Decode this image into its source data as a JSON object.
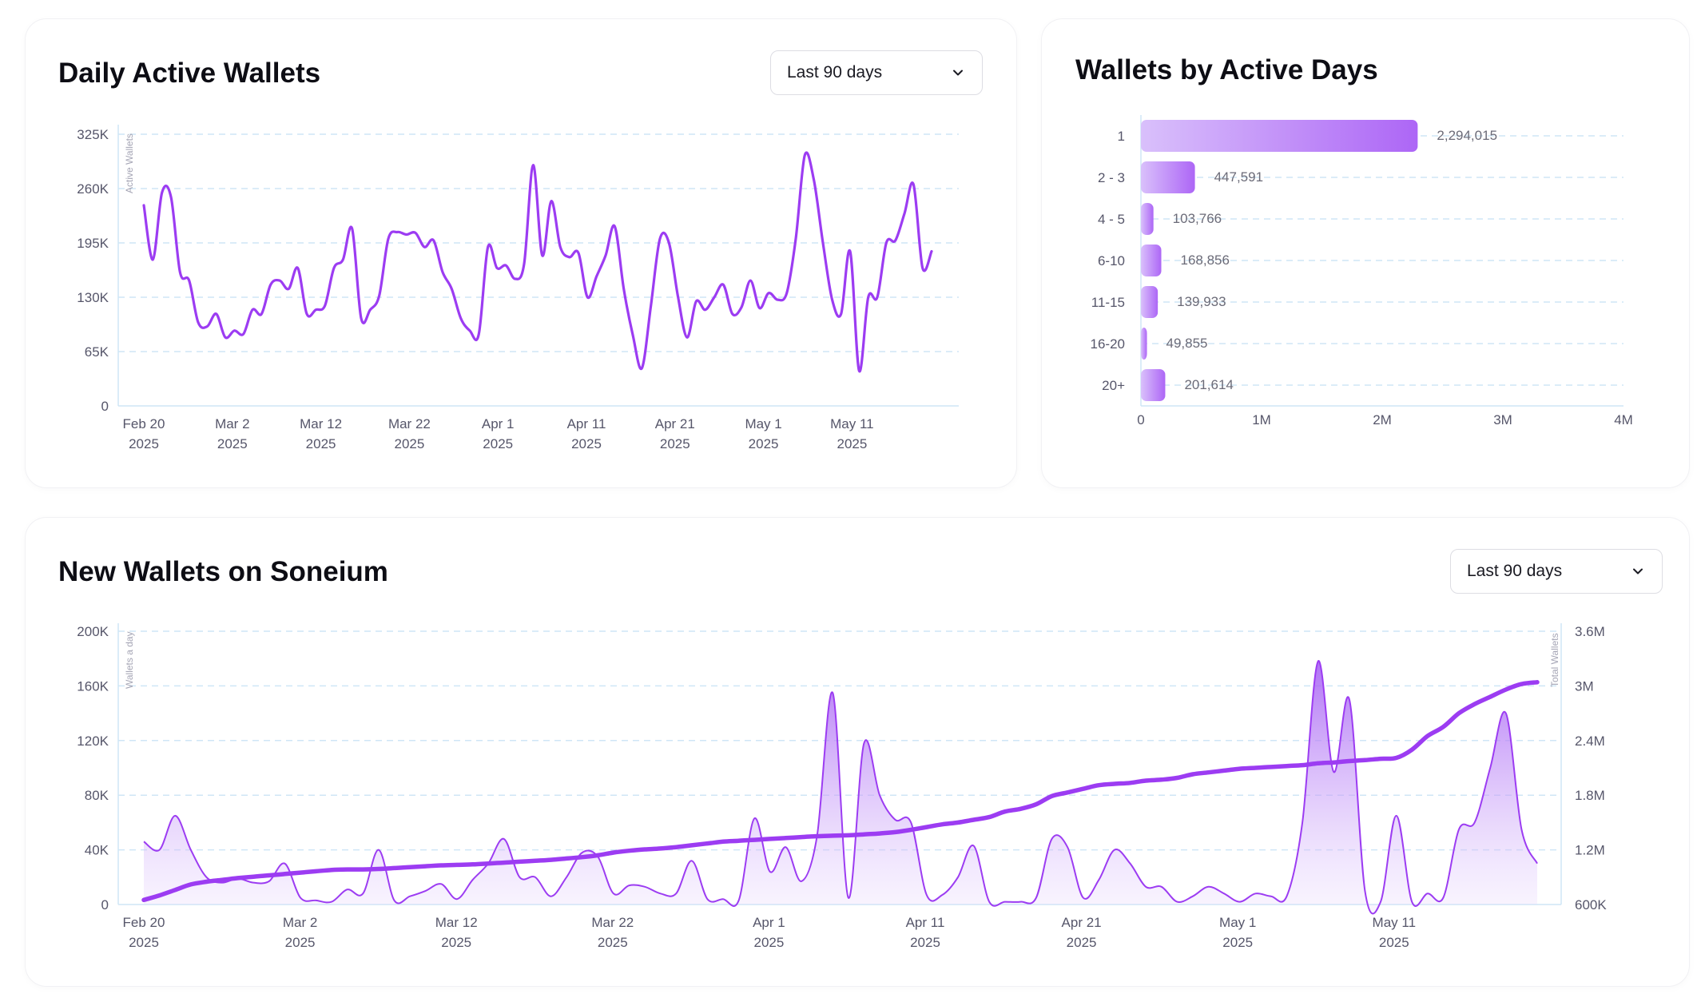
{
  "colors": {
    "accent": "#9c3cf2",
    "accent_light": "#d6b4fb",
    "grid": "#cfe6f6",
    "axis_text": "#56566a",
    "value_text": "#6b6b78",
    "axis_title": "#a5a5b5"
  },
  "daily_active": {
    "title": "Daily Active Wallets",
    "dropdown": {
      "label": "Last 90 days",
      "icon": "chevron-down-icon"
    }
  },
  "by_active_days": {
    "title": "Wallets by Active Days"
  },
  "new_wallets": {
    "title": "New Wallets on Soneium",
    "dropdown": {
      "label": "Last 90 days",
      "icon": "chevron-down-icon"
    }
  },
  "chart_data": [
    {
      "type": "line",
      "id": "daily-active-wallets",
      "title": "Daily Active Wallets",
      "ylabel": "Active Wallets",
      "ylim": [
        0,
        325000
      ],
      "yticks": [
        0,
        65000,
        130000,
        195000,
        260000,
        325000
      ],
      "ytick_labels": [
        "0",
        "65K",
        "130K",
        "195K",
        "260K",
        "325K"
      ],
      "xtick_labels": [
        [
          "Feb 20",
          "2025"
        ],
        [
          "Mar 2",
          "2025"
        ],
        [
          "Mar 12",
          "2025"
        ],
        [
          "Mar 22",
          "2025"
        ],
        [
          "Apr 1",
          "2025"
        ],
        [
          "Apr 11",
          "2025"
        ],
        [
          "Apr 21",
          "2025"
        ],
        [
          "May 1",
          "2025"
        ],
        [
          "May 11",
          "2025"
        ]
      ],
      "grid": true,
      "series": [
        {
          "values": [
            240000,
            175000,
            255000,
            250000,
            160000,
            150000,
            100000,
            95000,
            110000,
            82000,
            90000,
            86000,
            115000,
            110000,
            145000,
            150000,
            140000,
            165000,
            110000,
            115000,
            120000,
            165000,
            175000,
            212000,
            105000,
            115000,
            132000,
            200000,
            208000,
            205000,
            207000,
            190000,
            198000,
            160000,
            140000,
            105000,
            90000,
            86000,
            190000,
            165000,
            168000,
            152000,
            170000,
            288000,
            180000,
            245000,
            190000,
            178000,
            183000,
            130000,
            155000,
            180000,
            215000,
            140000,
            85000,
            45000,
            120000,
            200000,
            195000,
            130000,
            82000,
            125000,
            115000,
            130000,
            145000,
            110000,
            118000,
            150000,
            117000,
            135000,
            127000,
            135000,
            200000,
            300000,
            270000,
            195000,
            128000,
            110000,
            185000,
            42000,
            130000,
            130000,
            195000,
            198000,
            230000,
            265000,
            165000,
            185000
          ]
        }
      ]
    },
    {
      "type": "bar",
      "id": "wallets-by-active-days",
      "orientation": "horizontal",
      "title": "Wallets by Active Days",
      "categories": [
        "1",
        "2 - 3",
        "4 - 5",
        "6-10",
        "11-15",
        "16-20",
        "20+"
      ],
      "values": [
        2294015,
        447591,
        103766,
        168856,
        139933,
        49855,
        201614
      ],
      "value_labels": [
        "2,294,015",
        "447,591",
        "103,766",
        "168,856",
        "139,933",
        "49,855",
        "201,614"
      ],
      "xlim": [
        0,
        4000000
      ],
      "xticks": [
        0,
        1000000,
        2000000,
        3000000,
        4000000
      ],
      "xtick_labels": [
        "0",
        "1M",
        "2M",
        "3M",
        "4M"
      ],
      "grid": true
    },
    {
      "type": "area",
      "id": "new-wallets-on-soneium",
      "title": "New Wallets on Soneium",
      "ylabel": "Wallets a day",
      "ylabel_right": "Total Wallets",
      "ylim": [
        0,
        200000
      ],
      "yticks": [
        0,
        40000,
        80000,
        120000,
        160000,
        200000
      ],
      "ytick_labels": [
        "0",
        "40K",
        "80K",
        "120K",
        "160K",
        "200K"
      ],
      "ylim_right": [
        600000,
        3600000
      ],
      "yticks_right": [
        600000,
        1200000,
        1800000,
        2400000,
        3000000,
        3600000
      ],
      "ytick_labels_right": [
        "600K",
        "1.2M",
        "1.8M",
        "2.4M",
        "3M",
        "3.6M"
      ],
      "xtick_labels": [
        [
          "Feb 20",
          "2025"
        ],
        [
          "Mar 2",
          "2025"
        ],
        [
          "Mar 12",
          "2025"
        ],
        [
          "Mar 22",
          "2025"
        ],
        [
          "Apr 1",
          "2025"
        ],
        [
          "Apr 11",
          "2025"
        ],
        [
          "Apr 21",
          "2025"
        ],
        [
          "May 1",
          "2025"
        ],
        [
          "May 11",
          "2025"
        ]
      ],
      "grid": true,
      "series": [
        {
          "type": "area",
          "axis": "left",
          "values": [
            46000,
            40000,
            65000,
            40000,
            20000,
            16000,
            19000,
            16000,
            17000,
            30000,
            5000,
            3000,
            2000,
            11000,
            8000,
            40000,
            3000,
            6000,
            10000,
            15000,
            4000,
            18000,
            30000,
            48000,
            20000,
            20000,
            6000,
            20000,
            38000,
            35000,
            8000,
            14000,
            13000,
            8000,
            8000,
            32000,
            4000,
            4000,
            3000,
            63000,
            24000,
            42000,
            17000,
            50000,
            155000,
            5000,
            118000,
            80000,
            62000,
            60000,
            7000,
            7000,
            20000,
            43000,
            2000,
            2000,
            2000,
            5000,
            48000,
            42000,
            5000,
            18000,
            40000,
            30000,
            13000,
            13000,
            2000,
            6000,
            13000,
            8000,
            2000,
            8000,
            6000,
            6000,
            60000,
            178000,
            97000,
            150000,
            10000,
            2000,
            65000,
            2000,
            8000,
            5000,
            55000,
            60000,
            100000,
            140000,
            55000,
            30000
          ]
        },
        {
          "type": "line",
          "axis": "right",
          "values": [
            650000,
            700000,
            760000,
            820000,
            850000,
            870000,
            890000,
            905000,
            920000,
            935000,
            950000,
            965000,
            980000,
            985000,
            985000,
            990000,
            1000000,
            1010000,
            1020000,
            1030000,
            1035000,
            1040000,
            1050000,
            1060000,
            1070000,
            1080000,
            1090000,
            1105000,
            1120000,
            1140000,
            1170000,
            1190000,
            1205000,
            1215000,
            1230000,
            1250000,
            1270000,
            1290000,
            1300000,
            1310000,
            1320000,
            1330000,
            1340000,
            1350000,
            1355000,
            1360000,
            1370000,
            1380000,
            1395000,
            1420000,
            1450000,
            1480000,
            1500000,
            1530000,
            1560000,
            1620000,
            1650000,
            1700000,
            1790000,
            1830000,
            1870000,
            1910000,
            1925000,
            1935000,
            1960000,
            1970000,
            1990000,
            2030000,
            2050000,
            2070000,
            2090000,
            2100000,
            2110000,
            2120000,
            2130000,
            2150000,
            2160000,
            2175000,
            2185000,
            2200000,
            2210000,
            2300000,
            2450000,
            2550000,
            2700000,
            2800000,
            2880000,
            2960000,
            3020000,
            3040000
          ]
        }
      ]
    }
  ]
}
